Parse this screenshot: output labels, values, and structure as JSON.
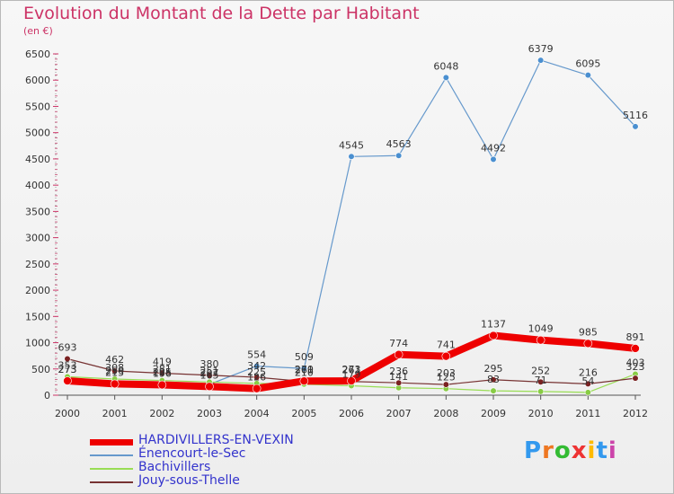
{
  "header": {
    "title": "Evolution du Montant de la Dette par Habitant",
    "subtitle": "(en €)"
  },
  "brand": {
    "logo_text": "Proxiti"
  },
  "colors": {
    "title": "#cc3366",
    "legend_text": "#3333cc"
  },
  "chart_data": {
    "type": "line",
    "title": "Evolution du Montant de la Dette par Habitant",
    "subtitle": "(en €)",
    "xlabel": "",
    "ylabel": "",
    "categories": [
      "2000",
      "2001",
      "2002",
      "2003",
      "2004",
      "2005",
      "2006",
      "2007",
      "2008",
      "2009",
      "2010",
      "2011",
      "2012"
    ],
    "ylim": [
      0,
      6500
    ],
    "yticks": [
      0,
      500,
      1000,
      1500,
      2000,
      2500,
      3000,
      3500,
      4000,
      4500,
      5000,
      5500,
      6000,
      6500
    ],
    "grid": false,
    "legend_position": "bottom-left",
    "series": [
      {
        "name": "HARDIVILLERS-EN-VEXIN",
        "color": "#ee0000",
        "width": 8,
        "values": [
          273,
          215,
          196,
          165,
          126,
          270,
          273,
          774,
          741,
          1137,
          1049,
          985,
          891
        ]
      },
      {
        "name": "Énencourt-le-Sec",
        "color": "#6699cc",
        "width": 1.2,
        "values": [
          273,
          250,
          225,
          207,
          554,
          509,
          4545,
          4563,
          6048,
          4492,
          6379,
          6095,
          5116
        ]
      },
      {
        "name": "Bachivillers",
        "color": "#99dd55",
        "width": 1.2,
        "values": [
          353,
          308,
          281,
          251,
          225,
          210,
          179,
          141,
          125,
          83,
          71,
          54,
          403
        ]
      },
      {
        "name": "Jouy-sous-Thelle",
        "color": "#773333",
        "width": 1.2,
        "values": [
          693,
          462,
          419,
          380,
          342,
          261,
          261,
          236,
          203,
          295,
          252,
          216,
          323
        ]
      }
    ]
  }
}
